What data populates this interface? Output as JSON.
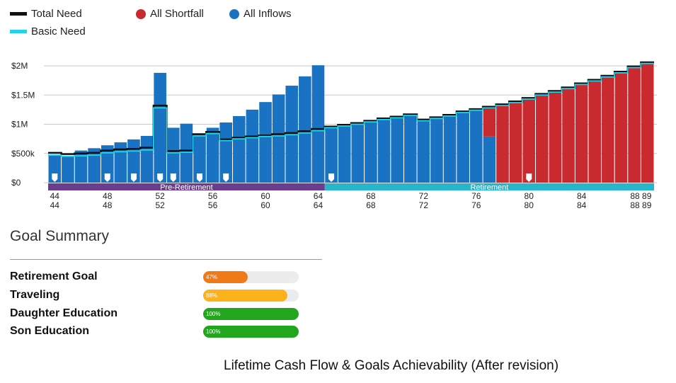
{
  "legend": {
    "total_need": "Total Need",
    "basic_need": "Basic Need",
    "all_shortfall": "All Shortfall",
    "all_inflows": "All Inflows"
  },
  "colors": {
    "inflow": "#1a73c2",
    "shortfall": "#c82a2f",
    "total_need": "#111111",
    "basic_need": "#22d3e6",
    "pre_retirement": "#6b3d8f",
    "retirement": "#26b5c9",
    "marker": "#ffffff"
  },
  "chart_data": {
    "type": "bar",
    "y_ticks": [
      "$0",
      "$500k",
      "$1M",
      "$1.5M",
      "$2M"
    ],
    "ylim": [
      0,
      2100000
    ],
    "ages": [
      44,
      45,
      46,
      47,
      48,
      49,
      50,
      51,
      52,
      53,
      54,
      55,
      56,
      57,
      58,
      59,
      60,
      61,
      62,
      63,
      64,
      65,
      66,
      67,
      68,
      69,
      70,
      71,
      72,
      73,
      74,
      75,
      76,
      77,
      78,
      79,
      80,
      81,
      82,
      83,
      84,
      85,
      86,
      87,
      88,
      89
    ],
    "x_tick_labels": [
      "44",
      "48",
      "52",
      "56",
      "60",
      "64",
      "68",
      "72",
      "76",
      "80",
      "84",
      "88 89"
    ],
    "phases": [
      {
        "label": "Pre-Retirement",
        "from_age": 44,
        "to_age": 64
      },
      {
        "label": "Retirement",
        "from_age": 65,
        "to_age": 89
      }
    ],
    "series": [
      {
        "name": "All Inflows",
        "values": [
          480000,
          460000,
          550000,
          590000,
          640000,
          690000,
          740000,
          800000,
          1880000,
          940000,
          1010000,
          840000,
          940000,
          1030000,
          1140000,
          1250000,
          1380000,
          1510000,
          1660000,
          1820000,
          2010000,
          940000,
          970000,
          1010000,
          1040000,
          1080000,
          1110000,
          1150000,
          1060000,
          1110000,
          1150000,
          1200000,
          1240000,
          790000,
          0,
          0,
          0,
          0,
          0,
          0,
          0,
          0,
          0,
          0,
          0,
          0
        ]
      },
      {
        "name": "All Shortfall",
        "values": [
          0,
          0,
          0,
          0,
          0,
          0,
          0,
          0,
          0,
          0,
          0,
          0,
          0,
          0,
          0,
          0,
          0,
          0,
          0,
          0,
          0,
          0,
          0,
          0,
          0,
          0,
          0,
          0,
          0,
          0,
          0,
          0,
          0,
          500000,
          1340000,
          1390000,
          1450000,
          1520000,
          1570000,
          1630000,
          1700000,
          1760000,
          1830000,
          1900000,
          1990000,
          2060000
        ]
      },
      {
        "name": "Total Need",
        "values": [
          510000,
          490000,
          500000,
          510000,
          550000,
          570000,
          580000,
          600000,
          1320000,
          540000,
          550000,
          830000,
          870000,
          740000,
          770000,
          790000,
          810000,
          830000,
          850000,
          880000,
          920000,
          960000,
          990000,
          1020000,
          1060000,
          1100000,
          1130000,
          1170000,
          1080000,
          1120000,
          1160000,
          1220000,
          1260000,
          1300000,
          1340000,
          1390000,
          1450000,
          1520000,
          1570000,
          1630000,
          1700000,
          1760000,
          1830000,
          1900000,
          1990000,
          2060000
        ]
      },
      {
        "name": "Basic Need",
        "values": [
          470000,
          450000,
          460000,
          470000,
          510000,
          530000,
          540000,
          560000,
          1280000,
          510000,
          520000,
          800000,
          840000,
          720000,
          750000,
          770000,
          790000,
          800000,
          820000,
          850000,
          890000,
          940000,
          970000,
          1000000,
          1040000,
          1080000,
          1110000,
          1150000,
          1060000,
          1100000,
          1140000,
          1200000,
          1240000,
          1280000,
          1320000,
          1370000,
          1430000,
          1500000,
          1550000,
          1610000,
          1680000,
          1740000,
          1810000,
          1880000,
          1970000,
          2040000
        ]
      }
    ],
    "goal_marker_ages": [
      44,
      48,
      50,
      52,
      53,
      55,
      57,
      65,
      80
    ]
  },
  "goal_summary": {
    "title": "Goal Summary",
    "goals": [
      {
        "label": "Retirement Goal",
        "percent_text": "47%",
        "value": 0.47,
        "color": "#f07a18"
      },
      {
        "label": "Traveling",
        "percent_text": "88%",
        "value": 0.88,
        "color": "#fbb21b"
      },
      {
        "label": "Daughter Education",
        "percent_text": "100%",
        "value": 1.0,
        "color": "#22a61d"
      },
      {
        "label": "Son Education",
        "percent_text": "100%",
        "value": 1.0,
        "color": "#22a61d"
      }
    ]
  },
  "caption": "Lifetime Cash Flow & Goals Achievability (After revision)"
}
